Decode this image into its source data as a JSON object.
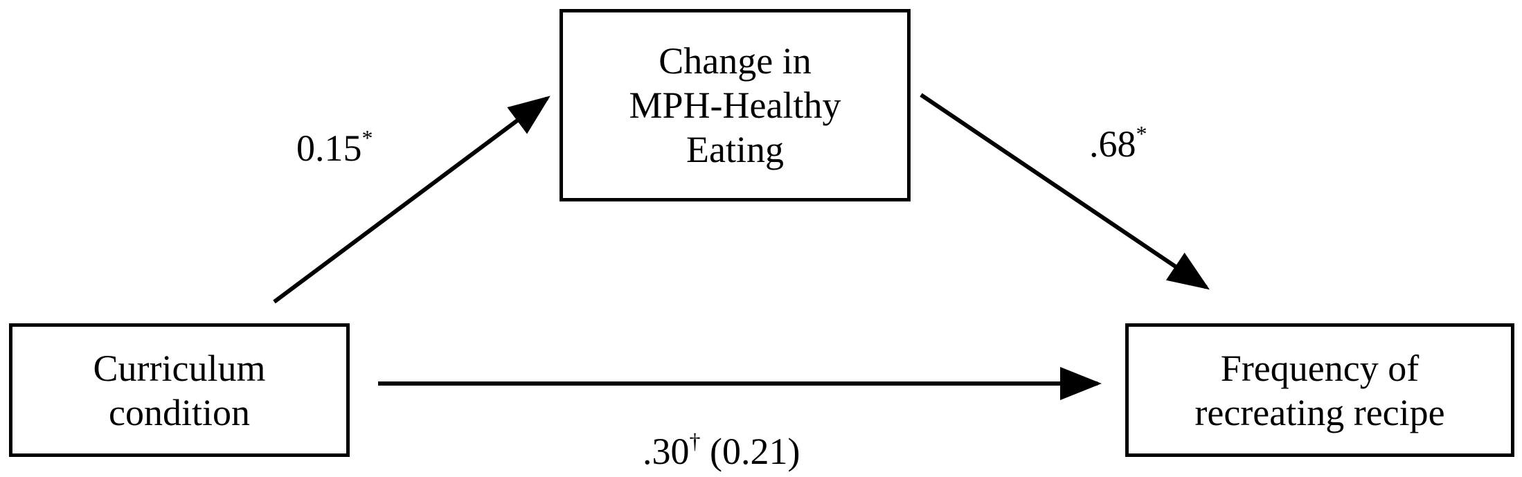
{
  "nodes": {
    "mediator": {
      "lines": [
        "Change in",
        "MPH-Healthy",
        "Eating"
      ]
    },
    "predictor": {
      "lines": [
        "Curriculum",
        "condition"
      ]
    },
    "outcome": {
      "lines": [
        "Frequency of",
        "recreating recipe"
      ]
    }
  },
  "paths": {
    "a": {
      "value": "0.15",
      "mark": "*"
    },
    "b": {
      "value": ".68",
      "mark": "*"
    },
    "c": {
      "value": ".30",
      "mark": "†",
      "suffix": " (0.21)"
    }
  }
}
